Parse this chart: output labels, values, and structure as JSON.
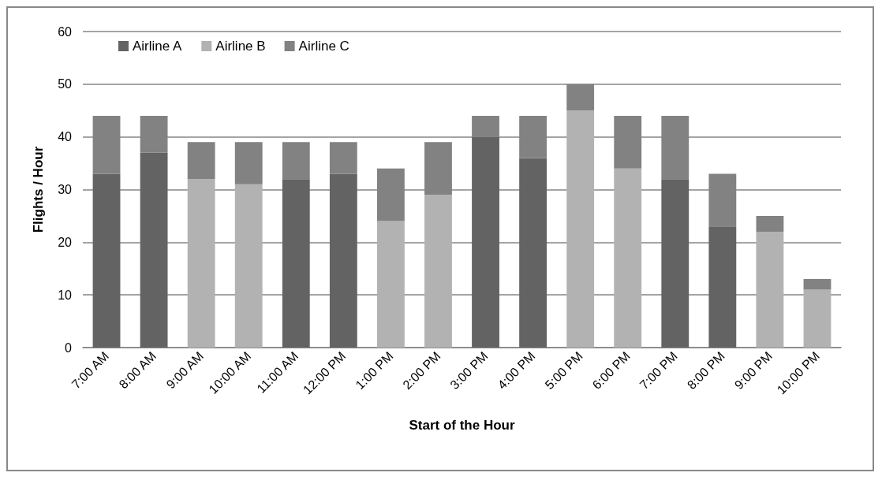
{
  "chart_data": {
    "type": "bar",
    "stacked": true,
    "xlabel": "Start of the Hour",
    "ylabel": "Flights / Hour",
    "categories": [
      "7:00 AM",
      "8:00 AM",
      "9:00 AM",
      "10:00 AM",
      "11:00 AM",
      "12:00 PM",
      "1:00 PM",
      "2:00 PM",
      "3:00 PM",
      "4:00 PM",
      "5:00 PM",
      "6:00 PM",
      "7:00 PM",
      "8:00 PM",
      "9:00 PM",
      "10:00 PM"
    ],
    "series": [
      {
        "name": "Airline A",
        "color": "#636363",
        "values": [
          33,
          37,
          null,
          null,
          32,
          33,
          null,
          null,
          40,
          36,
          null,
          null,
          32,
          23,
          null,
          null
        ]
      },
      {
        "name": "Airline B",
        "color": "#b2b2b2",
        "values": [
          null,
          null,
          32,
          31,
          null,
          null,
          24,
          29,
          null,
          null,
          45,
          34,
          null,
          null,
          22,
          11
        ]
      },
      {
        "name": "Airline C",
        "color": "#828282",
        "values": [
          11,
          7,
          7,
          8,
          7,
          6,
          10,
          10,
          4,
          8,
          5,
          10,
          12,
          10,
          3,
          2
        ]
      }
    ],
    "ylim": [
      0,
      60
    ],
    "yticks": [
      0,
      10,
      20,
      30,
      40,
      50,
      60
    ],
    "grid": "y",
    "legend": "top left"
  }
}
